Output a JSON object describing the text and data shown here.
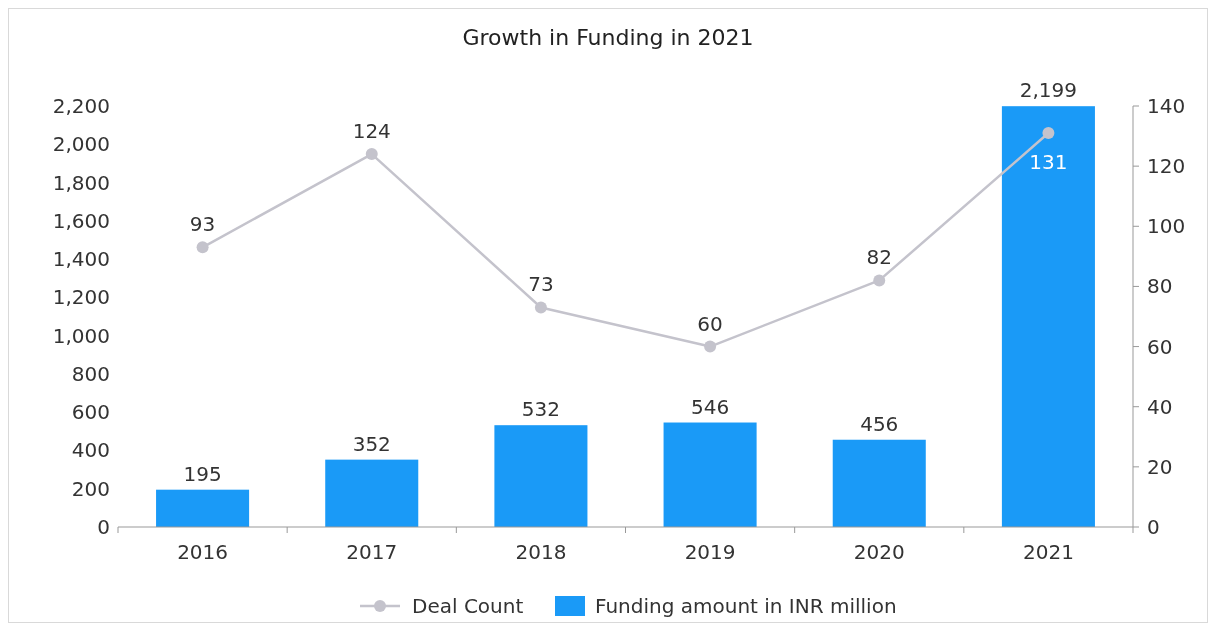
{
  "chart_data": {
    "type": "bar",
    "title": "Growth in Funding in 2021",
    "categories": [
      "2016",
      "2017",
      "2018",
      "2019",
      "2020",
      "2021"
    ],
    "series": [
      {
        "name": "Deal Count",
        "type": "line",
        "axis": "y2",
        "color": "#c4c3cc",
        "values": [
          93,
          124,
          73,
          60,
          82,
          131
        ]
      },
      {
        "name": "Funding amount in INR million",
        "color": "#1a9af7",
        "values": [
          195,
          352,
          532,
          546,
          456,
          2199
        ],
        "value_labels": [
          "195",
          "352",
          "532",
          "546",
          "456",
          "2,199"
        ]
      }
    ],
    "ylim": [
      0,
      2200
    ],
    "yticks": [
      {
        "value": 0,
        "label": "0"
      },
      {
        "value": 200,
        "label": "200"
      },
      {
        "value": 400,
        "label": "400"
      },
      {
        "value": 600,
        "label": "600"
      },
      {
        "value": 800,
        "label": "800"
      },
      {
        "value": 1000,
        "label": "1,000"
      },
      {
        "value": 1200,
        "label": "1,200"
      },
      {
        "value": 1400,
        "label": "1,400"
      },
      {
        "value": 1600,
        "label": "1,600"
      },
      {
        "value": 1800,
        "label": "1,800"
      },
      {
        "value": 2000,
        "label": "2,000"
      },
      {
        "value": 2200,
        "label": "2,200"
      }
    ],
    "y2lim": [
      0,
      140
    ],
    "y2ticks": [
      0,
      20,
      40,
      60,
      80,
      100,
      120,
      140
    ],
    "data_labels": true,
    "legend": "bottom",
    "marker": "circle",
    "grid": false
  }
}
